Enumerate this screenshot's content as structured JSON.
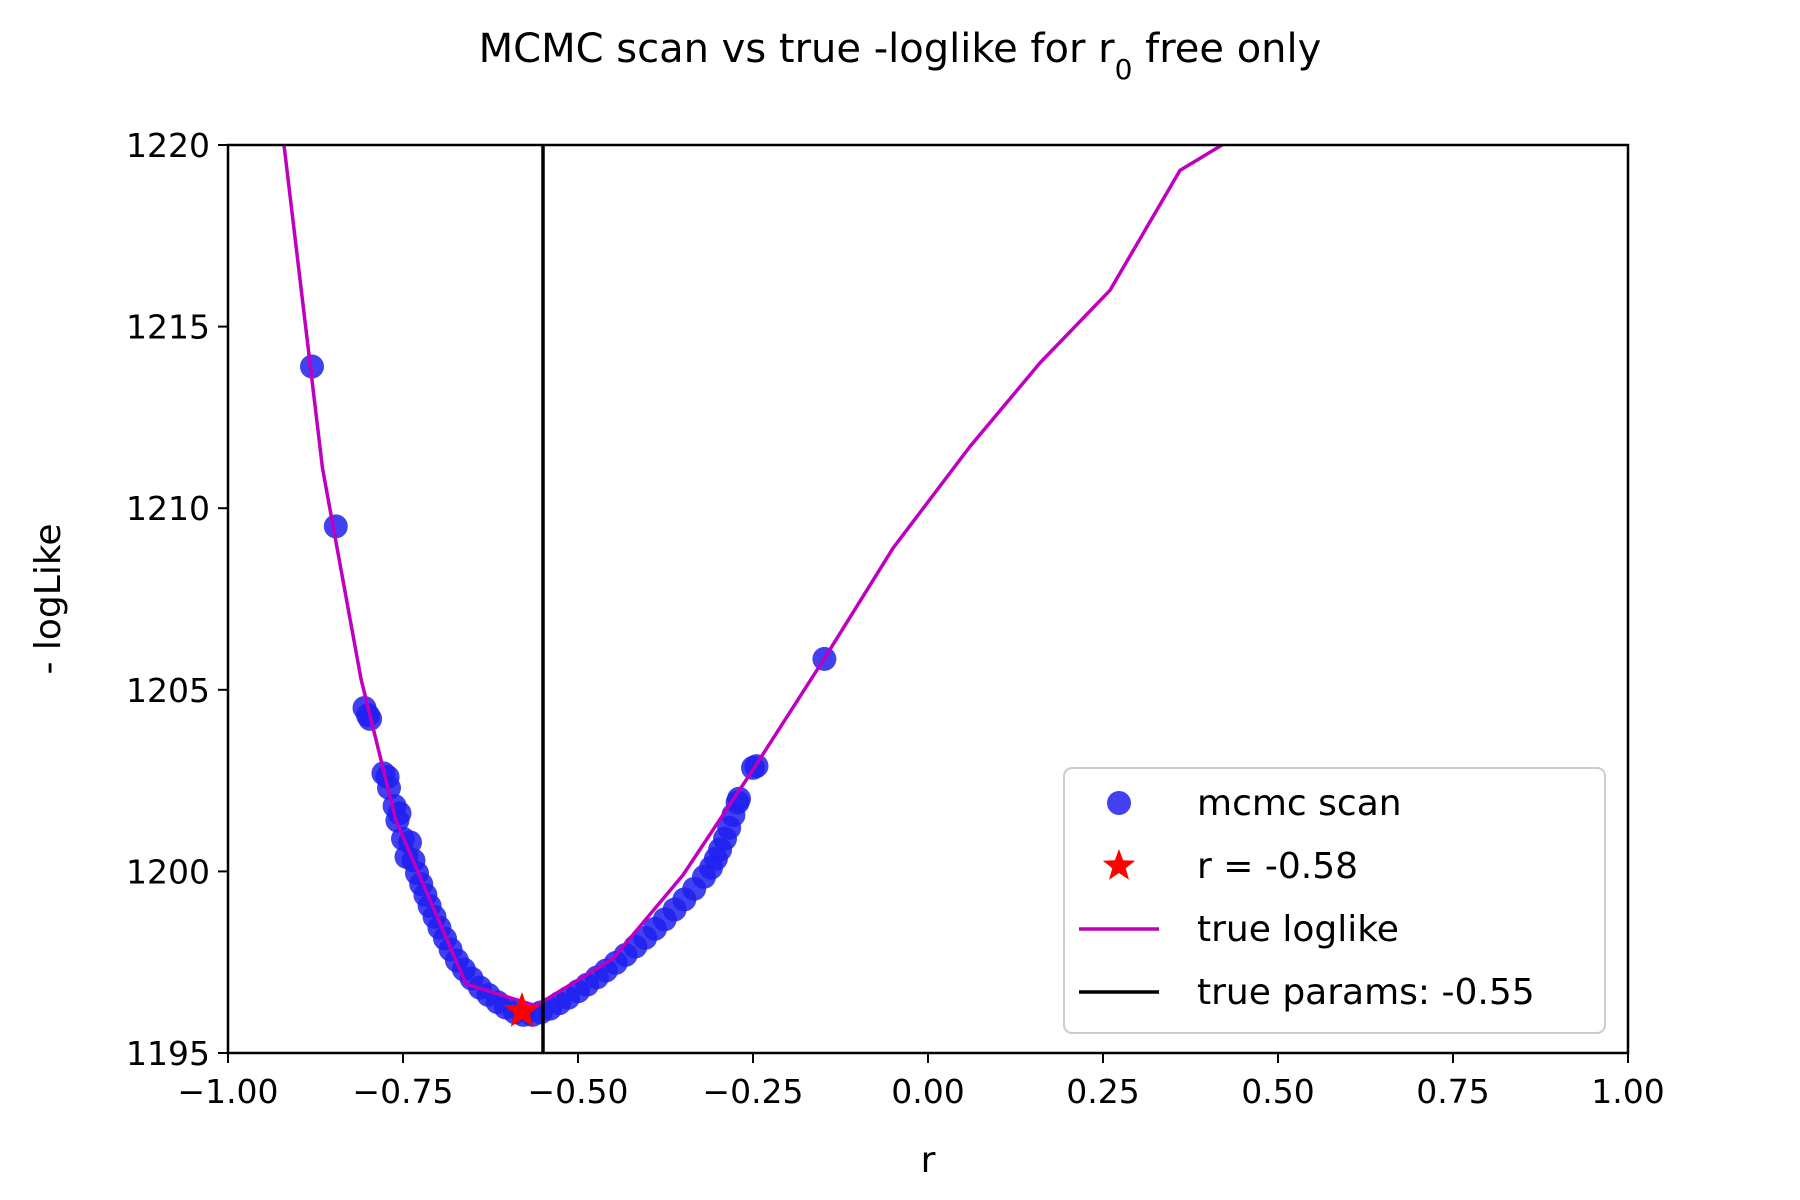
{
  "chart_data": {
    "type": "scatter",
    "title": "MCMC scan vs true -loglike for r",
    "title_subscript": "0",
    "title_suffix": " free only",
    "xlabel": "r",
    "ylabel": "- logLike",
    "xlim": [
      -1.0,
      1.0
    ],
    "ylim": [
      1195,
      1220
    ],
    "xticks": [
      "−1.00",
      "−0.75",
      "−0.50",
      "−0.25",
      "0.00",
      "0.25",
      "0.50",
      "0.75",
      "1.00"
    ],
    "xtick_values": [
      -1.0,
      -0.75,
      -0.5,
      -0.25,
      0.0,
      0.25,
      0.5,
      0.75,
      1.0
    ],
    "yticks": [
      "1195",
      "1200",
      "1205",
      "1210",
      "1215",
      "1220"
    ],
    "ytick_values": [
      1195,
      1200,
      1205,
      1210,
      1215,
      1220
    ],
    "grid": false,
    "legend_position": "lower-right",
    "series": [
      {
        "name": "mcmc scan",
        "kind": "scatter",
        "color": "#2020f0",
        "points": [
          [
            -0.88,
            1213.9
          ],
          [
            -0.846,
            1209.5
          ],
          [
            -0.805,
            1204.5
          ],
          [
            -0.8,
            1204.3
          ],
          [
            -0.797,
            1204.2
          ],
          [
            -0.778,
            1202.7
          ],
          [
            -0.772,
            1202.6
          ],
          [
            -0.77,
            1202.3
          ],
          [
            -0.762,
            1201.8
          ],
          [
            -0.755,
            1201.6
          ],
          [
            -0.758,
            1201.4
          ],
          [
            -0.75,
            1200.9
          ],
          [
            -0.74,
            1200.8
          ],
          [
            -0.745,
            1200.4
          ],
          [
            -0.735,
            1200.3
          ],
          [
            -0.73,
            1199.95
          ],
          [
            -0.724,
            1199.65
          ],
          [
            -0.718,
            1199.35
          ],
          [
            -0.712,
            1199.05
          ],
          [
            -0.705,
            1198.75
          ],
          [
            -0.698,
            1198.45
          ],
          [
            -0.69,
            1198.15
          ],
          [
            -0.682,
            1197.85
          ],
          [
            -0.673,
            1197.55
          ],
          [
            -0.663,
            1197.3
          ],
          [
            -0.652,
            1197.05
          ],
          [
            -0.64,
            1196.8
          ],
          [
            -0.628,
            1196.6
          ],
          [
            -0.615,
            1196.4
          ],
          [
            -0.603,
            1196.25
          ],
          [
            -0.59,
            1196.12
          ],
          [
            -0.578,
            1196.05
          ],
          [
            -0.565,
            1196.05
          ],
          [
            -0.553,
            1196.12
          ],
          [
            -0.54,
            1196.22
          ],
          [
            -0.527,
            1196.37
          ],
          [
            -0.514,
            1196.52
          ],
          [
            -0.5,
            1196.7
          ],
          [
            -0.487,
            1196.88
          ],
          [
            -0.473,
            1197.08
          ],
          [
            -0.46,
            1197.27
          ],
          [
            -0.446,
            1197.48
          ],
          [
            -0.432,
            1197.7
          ],
          [
            -0.418,
            1197.93
          ],
          [
            -0.404,
            1198.17
          ],
          [
            -0.39,
            1198.42
          ],
          [
            -0.376,
            1198.68
          ],
          [
            -0.362,
            1198.95
          ],
          [
            -0.348,
            1199.23
          ],
          [
            -0.334,
            1199.52
          ],
          [
            -0.32,
            1199.85
          ],
          [
            -0.31,
            1200.1
          ],
          [
            -0.303,
            1200.35
          ],
          [
            -0.297,
            1200.6
          ],
          [
            -0.29,
            1200.9
          ],
          [
            -0.284,
            1201.2
          ],
          [
            -0.278,
            1201.55
          ],
          [
            -0.272,
            1201.9
          ],
          [
            -0.27,
            1202.0
          ],
          [
            -0.25,
            1202.85
          ],
          [
            -0.245,
            1202.9
          ],
          [
            -0.148,
            1205.85
          ]
        ]
      },
      {
        "name": "r = -0.58",
        "kind": "star",
        "color": "#ff0000",
        "points": [
          [
            -0.58,
            1196.15
          ]
        ]
      },
      {
        "name": "true loglike",
        "kind": "line",
        "color": "#bf00bf",
        "points": [
          [
            -0.92,
            1220
          ],
          [
            -0.865,
            1211.1
          ],
          [
            -0.81,
            1205.3
          ],
          [
            -0.76,
            1201.4
          ],
          [
            -0.66,
            1196.9
          ],
          [
            -0.56,
            1196.3
          ],
          [
            -0.45,
            1197.6
          ],
          [
            -0.35,
            1199.9
          ],
          [
            -0.25,
            1202.8
          ],
          [
            -0.15,
            1205.8
          ],
          [
            -0.05,
            1208.9
          ],
          [
            0.06,
            1211.7
          ],
          [
            0.16,
            1214.0
          ],
          [
            0.26,
            1216.0
          ],
          [
            0.36,
            1219.3
          ],
          [
            0.42,
            1220.0
          ]
        ]
      },
      {
        "name": "true params: -0.55",
        "kind": "vline",
        "color": "#000000",
        "x": -0.55
      }
    ]
  }
}
